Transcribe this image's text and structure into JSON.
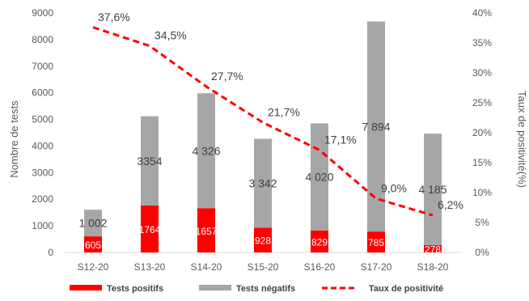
{
  "chart_data": {
    "type": "bar",
    "stacked": true,
    "categories": [
      "S12-20",
      "S13-20",
      "S14-20",
      "S15-20",
      "S16-20",
      "S17-20",
      "S18-20"
    ],
    "series": [
      {
        "name": "Tests positifs",
        "type": "bar",
        "color": "#ff0000",
        "values": [
          605,
          1764,
          1657,
          928,
          829,
          785,
          278
        ],
        "labels": [
          "605",
          "1764",
          "1657",
          "928",
          "829",
          "785",
          "278"
        ]
      },
      {
        "name": "Tests négatifs",
        "type": "bar",
        "color": "#a6a6a6",
        "values": [
          1002,
          3354,
          4326,
          3342,
          4020,
          7894,
          4185
        ],
        "labels": [
          "1 002",
          "3354",
          "4 326",
          "3 342",
          "4 020",
          "7 894",
          "4 185"
        ]
      },
      {
        "name": "Taux de positivité",
        "type": "line",
        "axis": "right",
        "style": "dashed",
        "color": "#ff0000",
        "values": [
          37.6,
          34.5,
          27.7,
          21.7,
          17.1,
          9.0,
          6.2
        ],
        "labels": [
          "37,6%",
          "34,5%",
          "27,7%",
          "21,7%",
          "17,1%",
          "9,0%",
          "6,2%"
        ]
      }
    ],
    "ylabel": "Nombre de tests",
    "ylim": [
      0,
      9000
    ],
    "yticks": [
      "0",
      "1000",
      "2000",
      "3000",
      "4000",
      "5000",
      "6000",
      "7000",
      "8000",
      "9000"
    ],
    "y2label": "Taux de positivité(%)",
    "y2lim": [
      0,
      40
    ],
    "y2ticks": [
      "0%",
      "5%",
      "10%",
      "15%",
      "20%",
      "25%",
      "30%",
      "35%",
      "40%"
    ],
    "grid": false,
    "legend_position": "bottom"
  }
}
